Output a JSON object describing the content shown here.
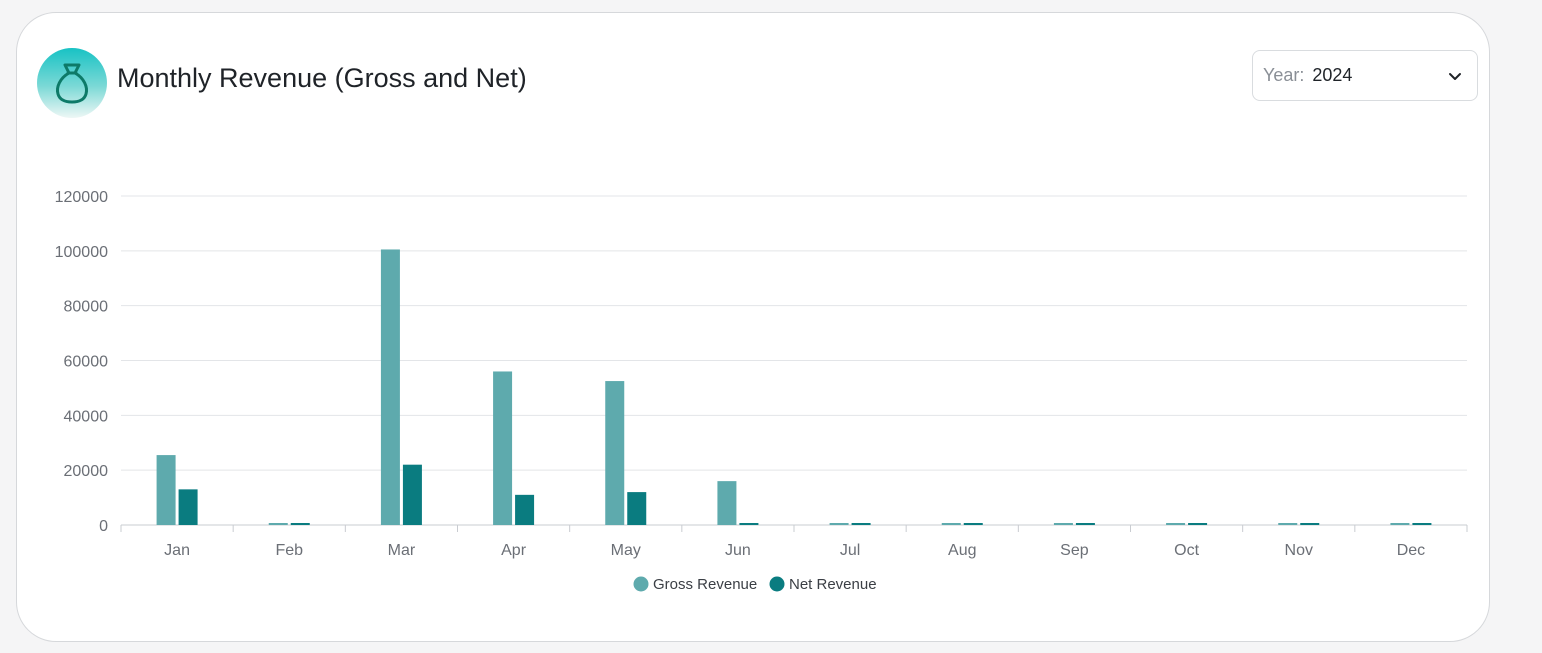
{
  "header": {
    "title": "Monthly Revenue (Gross and Net)",
    "icon": "money-bag-icon"
  },
  "year_select": {
    "label": "Year:",
    "value": "2024"
  },
  "colors": {
    "gross": "#5eaaad",
    "net": "#0a7c80",
    "grid": "#e3e5e8",
    "axis": "#c9ccd1"
  },
  "chart_data": {
    "type": "bar",
    "categories": [
      "Jan",
      "Feb",
      "Mar",
      "Apr",
      "May",
      "Jun",
      "Jul",
      "Aug",
      "Sep",
      "Oct",
      "Nov",
      "Dec"
    ],
    "series": [
      {
        "name": "Gross Revenue",
        "values": [
          25500,
          0,
          100500,
          56000,
          52500,
          16000,
          0,
          0,
          0,
          0,
          0,
          0
        ]
      },
      {
        "name": "Net Revenue",
        "values": [
          13000,
          0,
          22000,
          11000,
          12000,
          0,
          0,
          0,
          0,
          0,
          0,
          0
        ]
      }
    ],
    "yticks": [
      0,
      20000,
      40000,
      60000,
      80000,
      100000,
      120000
    ],
    "ylim": [
      0,
      120000
    ],
    "grid": true,
    "legend": "bottom-center"
  }
}
